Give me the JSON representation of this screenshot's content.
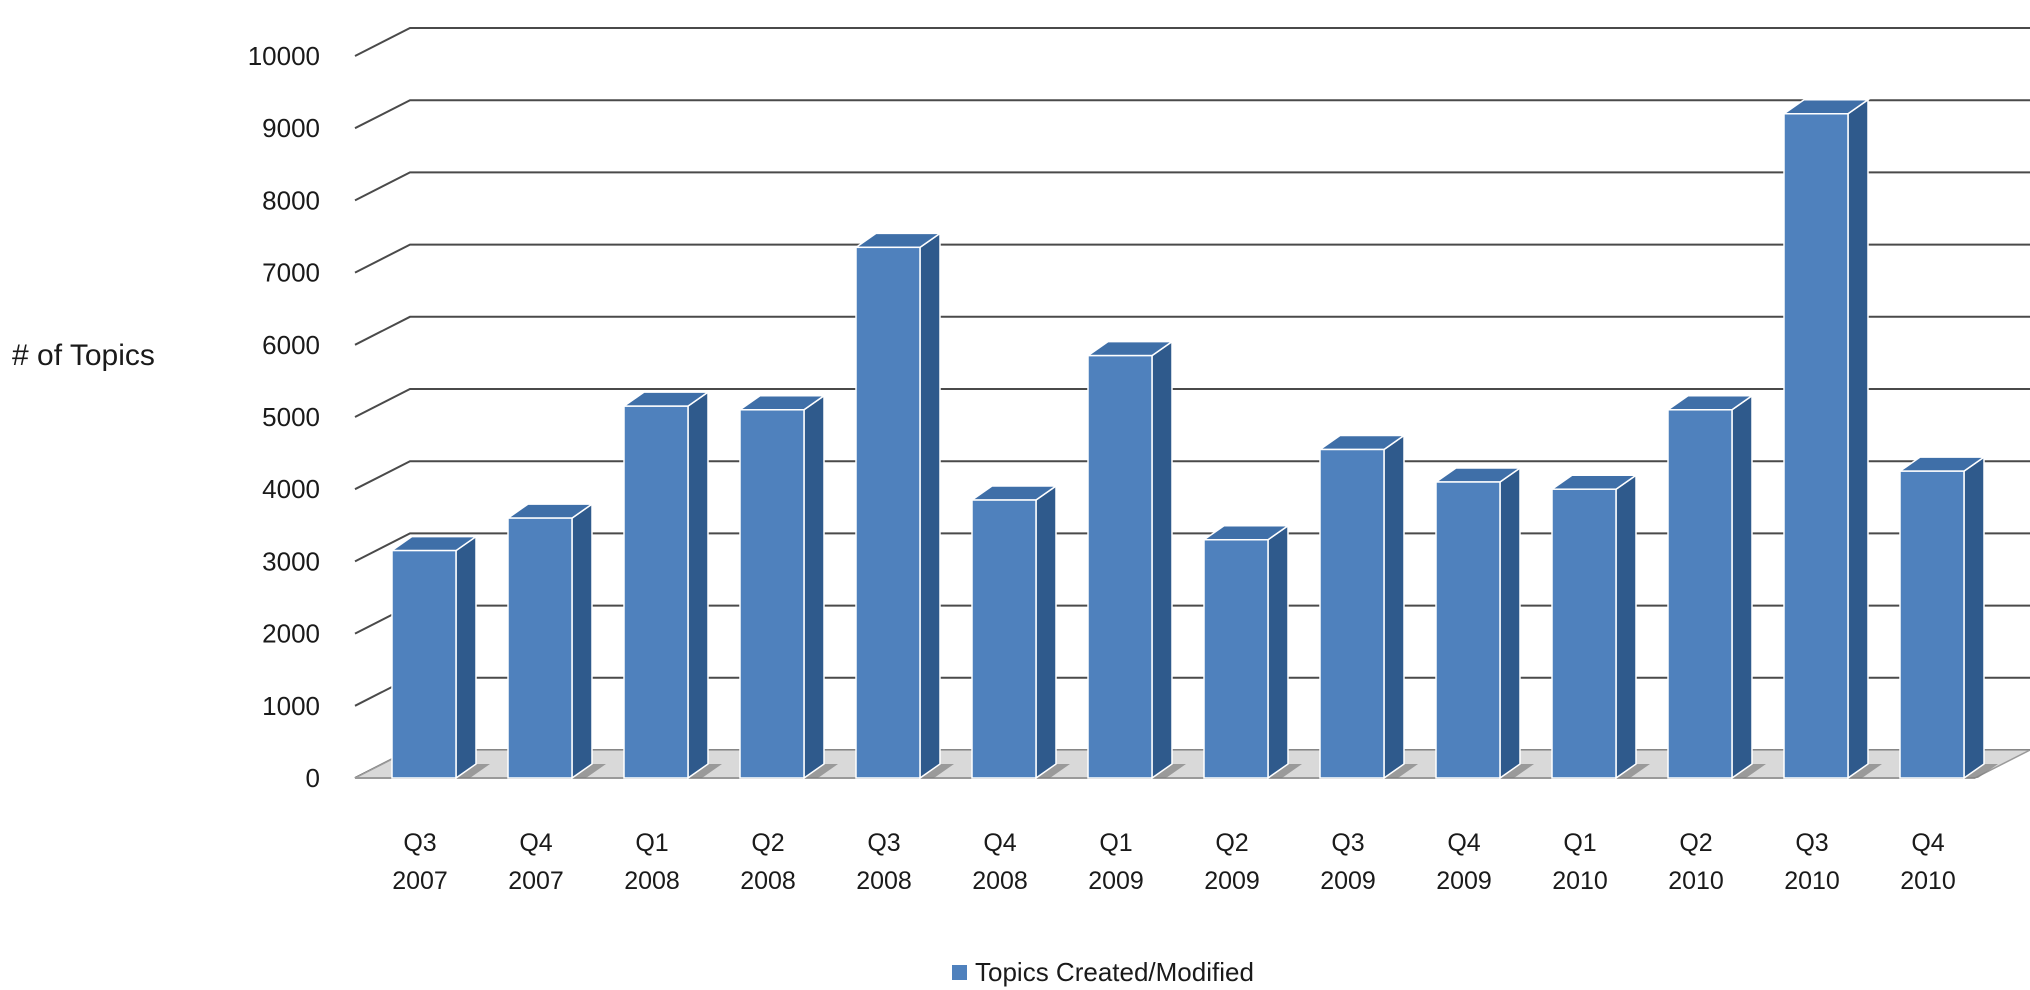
{
  "colors": {
    "bar_front": "#4f81bd",
    "bar_side": "#2f5a8c",
    "bar_top": "#3f6fa8",
    "grid": "#4a4a4a",
    "floor": "#9a9a9a"
  },
  "chart_data": {
    "type": "bar",
    "title": "",
    "xlabel": "",
    "ylabel": "# of Topics",
    "ylim": [
      0,
      10000
    ],
    "yticks": [
      0,
      1000,
      2000,
      3000,
      4000,
      5000,
      6000,
      7000,
      8000,
      9000,
      10000
    ],
    "categories": [
      [
        "Q3",
        "2007"
      ],
      [
        "Q4",
        "2007"
      ],
      [
        "Q1",
        "2008"
      ],
      [
        "Q2",
        "2008"
      ],
      [
        "Q3",
        "2008"
      ],
      [
        "Q4",
        "2008"
      ],
      [
        "Q1",
        "2009"
      ],
      [
        "Q2",
        "2009"
      ],
      [
        "Q3",
        "2009"
      ],
      [
        "Q4",
        "2009"
      ],
      [
        "Q1",
        "2010"
      ],
      [
        "Q2",
        "2010"
      ],
      [
        "Q3",
        "2010"
      ],
      [
        "Q4",
        "2010"
      ]
    ],
    "series": [
      {
        "name": "Topics Created/Modified",
        "values": [
          3150,
          3600,
          5150,
          5100,
          7350,
          3850,
          5850,
          3300,
          4550,
          4100,
          4000,
          5100,
          9200,
          4250
        ]
      }
    ],
    "grid": true,
    "three_d": true,
    "legend_position": "bottom"
  }
}
